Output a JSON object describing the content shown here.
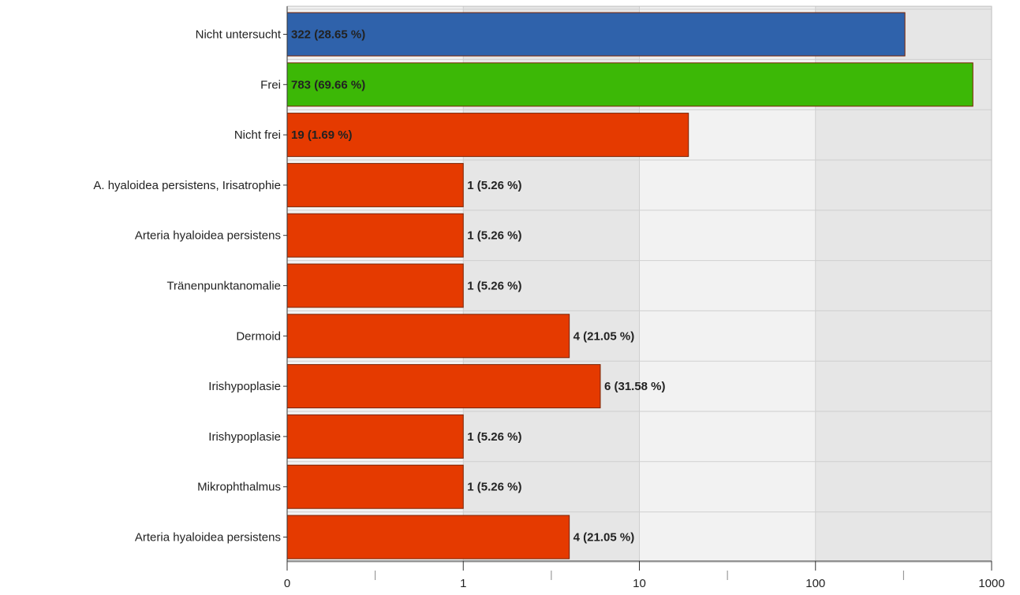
{
  "chart_data": {
    "type": "bar",
    "orientation": "horizontal",
    "x_scale": "log (with 0 at origin)",
    "xlim": [
      0,
      1000
    ],
    "x_ticks": [
      "0",
      "1",
      "10",
      "100",
      "1000"
    ],
    "grid": true,
    "categories": [
      "Nicht untersucht",
      "Frei",
      "Nicht frei",
      "A. hyaloidea persistens, Irisatrophie",
      "Arteria hyaloidea persistens",
      "Tränenpunktanomalie",
      "Dermoid",
      "Irishypoplasie",
      "Irishypoplasie",
      "Mikrophthalmus",
      "Arteria hyaloidea persistens"
    ],
    "values": [
      322,
      783,
      19,
      1,
      1,
      1,
      4,
      6,
      1,
      1,
      4
    ],
    "value_labels": [
      "322 (28.65 %)",
      "783 (69.66 %)",
      "19 (1.69 %)",
      "1 (5.26 %)",
      "1 (5.26 %)",
      "1 (5.26 %)",
      "4 (21.05 %)",
      "6 (31.58 %)",
      "1 (5.26 %)",
      "1 (5.26 %)",
      "4 (21.05 %)"
    ],
    "bar_colors": [
      "#2f62ab",
      "#3cb806",
      "#e53a00",
      "#e53a00",
      "#e53a00",
      "#e53a00",
      "#e53a00",
      "#e53a00",
      "#e53a00",
      "#e53a00",
      "#e53a00"
    ],
    "colors": {
      "plot_background": "#f2f2f2",
      "alt_band": "#e6e6e6",
      "grid": "#cfcfcf",
      "axis": "#333333",
      "bar_border": "#7a2200"
    }
  }
}
